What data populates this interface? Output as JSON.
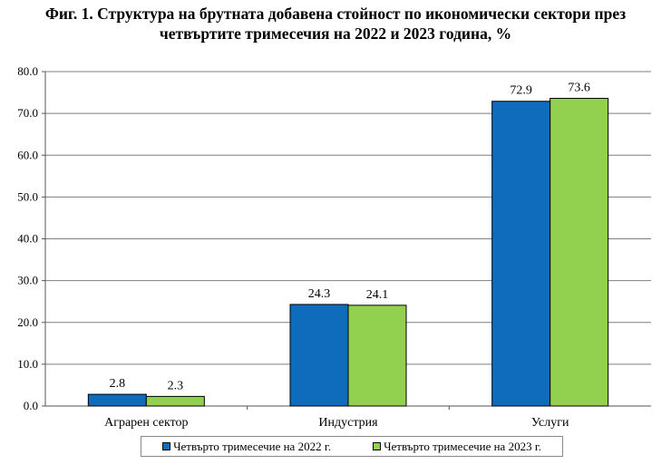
{
  "title_line1": "Фиг. 1. Структура на брутната добавена стойност по икономически сектори през",
  "title_line2": "четвъртите тримесечия на 2022 и 2023 година, %",
  "chart_data": {
    "type": "bar",
    "title": "Фиг. 1. Структура на брутната добавена стойност по икономически сектори през четвъртите тримесечия на 2022 и 2023 година, %",
    "categories": [
      "Аграрен сектор",
      "Индустрия",
      "Услуги"
    ],
    "series": [
      {
        "name": "Четвърто тримесечие на 2022 г.",
        "values": [
          2.8,
          24.3,
          72.9
        ],
        "color": "#0f6cbd"
      },
      {
        "name": "Четвърто тримесечие на 2023 г.",
        "values": [
          2.3,
          24.1,
          73.6
        ],
        "color": "#92d050"
      }
    ],
    "ylim": [
      0,
      80
    ],
    "yticks": [
      "0.0",
      "10.0",
      "20.0",
      "30.0",
      "40.0",
      "50.0",
      "60.0",
      "70.0",
      "80.0"
    ],
    "grid": true,
    "legend": "bottom"
  }
}
